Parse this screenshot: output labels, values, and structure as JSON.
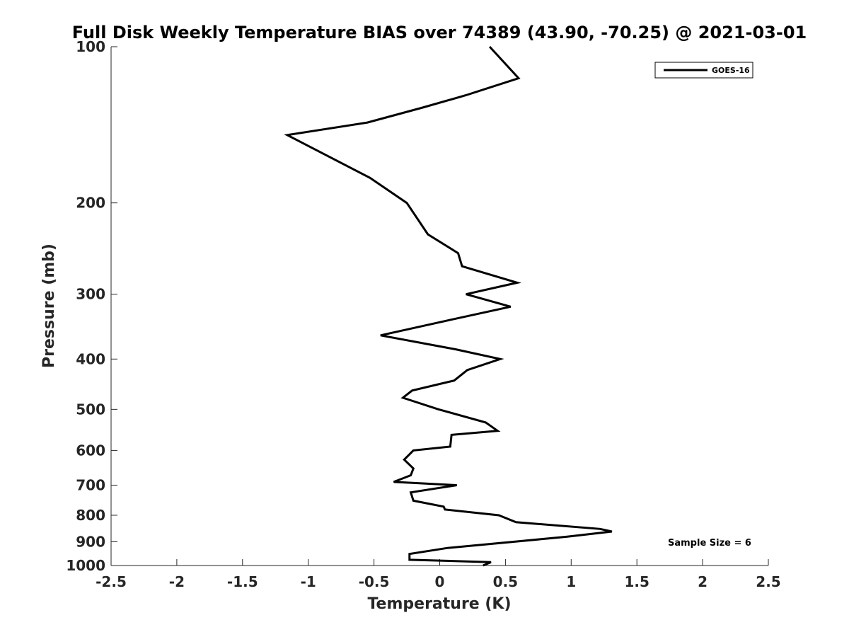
{
  "chart_data": {
    "type": "line",
    "title": "Full Disk Weekly Temperature BIAS over 74389 (43.90, -70.25) @ 2021-03-01",
    "xlabel": "Temperature (K)",
    "ylabel": "Pressure (mb)",
    "xlim": [
      -2.5,
      2.5
    ],
    "ylim": [
      100,
      1000
    ],
    "y_scale": "log",
    "y_reversed": true,
    "grid": false,
    "x_ticks": [
      {
        "value": -2.5,
        "label": "-2.5"
      },
      {
        "value": -2,
        "label": "-2"
      },
      {
        "value": -1.5,
        "label": "-1.5"
      },
      {
        "value": -1,
        "label": "-1"
      },
      {
        "value": -0.5,
        "label": "-0.5"
      },
      {
        "value": 0,
        "label": "0"
      },
      {
        "value": 0.5,
        "label": "0.5"
      },
      {
        "value": 1,
        "label": "1"
      },
      {
        "value": 1.5,
        "label": "1.5"
      },
      {
        "value": 2,
        "label": "2"
      },
      {
        "value": 2.5,
        "label": "2.5"
      }
    ],
    "y_ticks": [
      {
        "value": 100,
        "label": "100"
      },
      {
        "value": 200,
        "label": "200"
      },
      {
        "value": 300,
        "label": "300"
      },
      {
        "value": 400,
        "label": "400"
      },
      {
        "value": 500,
        "label": "500"
      },
      {
        "value": 600,
        "label": "600"
      },
      {
        "value": 700,
        "label": "700"
      },
      {
        "value": 800,
        "label": "800"
      },
      {
        "value": 900,
        "label": "900"
      },
      {
        "value": 1000,
        "label": "1000"
      }
    ],
    "legend_position": "top-right",
    "series": [
      {
        "name": "GOES-16",
        "color": "#000000",
        "points": [
          {
            "t": 0.38,
            "p": 100
          },
          {
            "t": 0.6,
            "p": 115
          },
          {
            "t": 0.2,
            "p": 124
          },
          {
            "t": -0.13,
            "p": 131
          },
          {
            "t": -0.55,
            "p": 140
          },
          {
            "t": -1.16,
            "p": 148
          },
          {
            "t": -0.53,
            "p": 179
          },
          {
            "t": -0.25,
            "p": 200
          },
          {
            "t": -0.09,
            "p": 230
          },
          {
            "t": 0.14,
            "p": 250
          },
          {
            "t": 0.17,
            "p": 265
          },
          {
            "t": 0.59,
            "p": 285
          },
          {
            "t": 0.2,
            "p": 300
          },
          {
            "t": 0.54,
            "p": 317
          },
          {
            "t": 0.06,
            "p": 337
          },
          {
            "t": -0.45,
            "p": 360
          },
          {
            "t": 0.12,
            "p": 383
          },
          {
            "t": 0.46,
            "p": 400
          },
          {
            "t": 0.21,
            "p": 420
          },
          {
            "t": 0.11,
            "p": 440
          },
          {
            "t": -0.21,
            "p": 460
          },
          {
            "t": -0.28,
            "p": 475
          },
          {
            "t": -0.01,
            "p": 500
          },
          {
            "t": 0.35,
            "p": 530
          },
          {
            "t": 0.44,
            "p": 550
          },
          {
            "t": 0.09,
            "p": 560
          },
          {
            "t": 0.08,
            "p": 590
          },
          {
            "t": -0.2,
            "p": 600
          },
          {
            "t": -0.27,
            "p": 625
          },
          {
            "t": -0.2,
            "p": 650
          },
          {
            "t": -0.22,
            "p": 670
          },
          {
            "t": -0.35,
            "p": 690
          },
          {
            "t": 0.13,
            "p": 700
          },
          {
            "t": -0.22,
            "p": 723
          },
          {
            "t": -0.2,
            "p": 750
          },
          {
            "t": 0.03,
            "p": 770
          },
          {
            "t": 0.04,
            "p": 780
          },
          {
            "t": 0.45,
            "p": 800
          },
          {
            "t": 0.58,
            "p": 825
          },
          {
            "t": 1.22,
            "p": 850
          },
          {
            "t": 1.31,
            "p": 860
          },
          {
            "t": 0.97,
            "p": 880
          },
          {
            "t": 0.06,
            "p": 925
          },
          {
            "t": -0.23,
            "p": 950
          },
          {
            "t": -0.23,
            "p": 975
          },
          {
            "t": 0.39,
            "p": 985
          },
          {
            "t": 0.33,
            "p": 1000
          }
        ]
      }
    ],
    "annotations": [
      {
        "text": "Sample Size = 6",
        "position": "bottom-right"
      }
    ]
  }
}
